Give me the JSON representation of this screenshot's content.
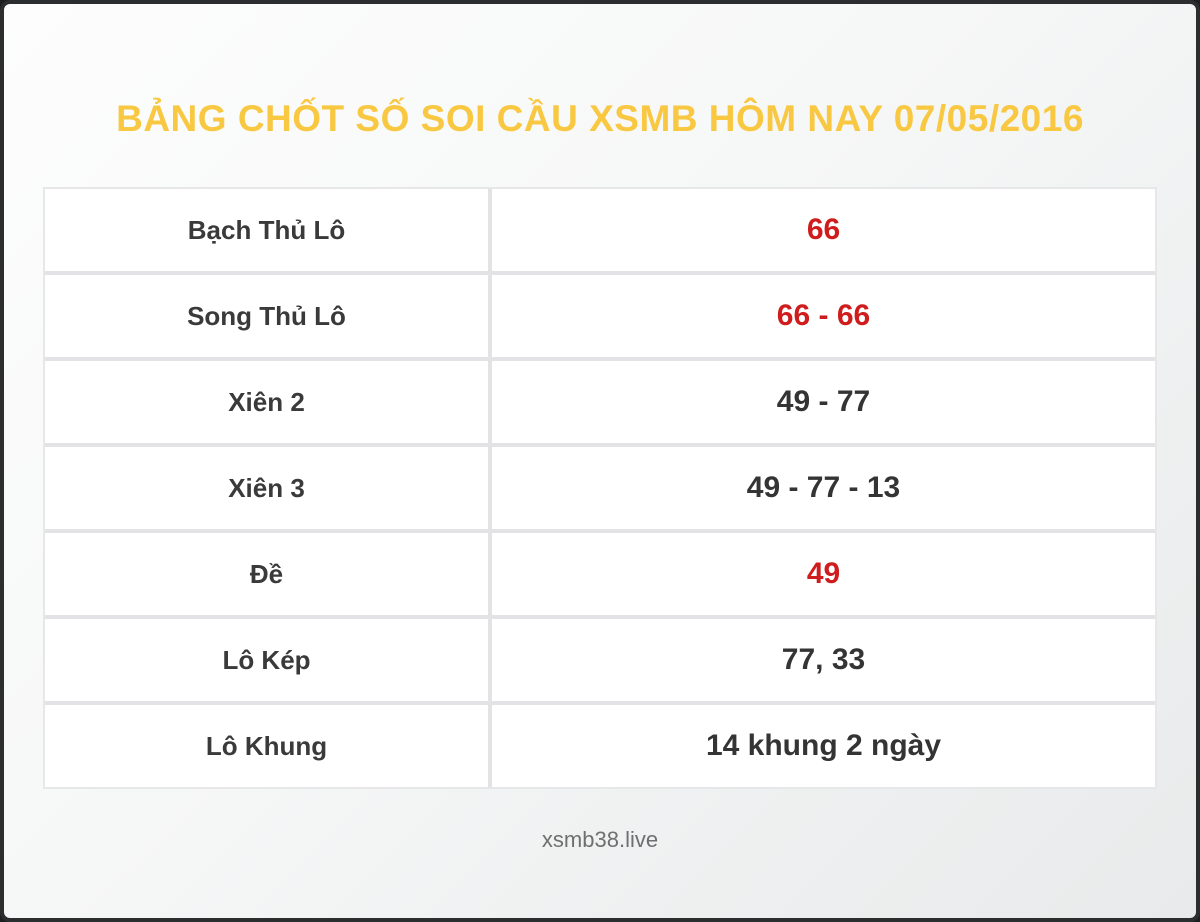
{
  "page": {
    "title": "BẢNG CHỐT SỐ SOI CẦU XSMB HÔM NAY 07/05/2016",
    "footer": "xsmb38.live"
  },
  "table": {
    "rows": [
      {
        "label": "Bạch Thủ Lô",
        "value": "66",
        "highlight": true
      },
      {
        "label": "Song Thủ Lô",
        "value": "66 - 66",
        "highlight": true
      },
      {
        "label": "Xiên 2",
        "value": "49 - 77",
        "highlight": false
      },
      {
        "label": "Xiên 3",
        "value": "49 - 77 - 13",
        "highlight": false
      },
      {
        "label": "Đề",
        "value": "49",
        "highlight": true
      },
      {
        "label": "Lô Kép",
        "value": "77, 33",
        "highlight": false
      },
      {
        "label": "Lô Khung",
        "value": "14 khung 2 ngày",
        "highlight": false
      }
    ]
  },
  "colors": {
    "title_gold": "#f9c842",
    "highlight_red": "#cf1d1d",
    "text_dark": "#3a3a3a",
    "footer_gray": "#6f6f6f"
  }
}
